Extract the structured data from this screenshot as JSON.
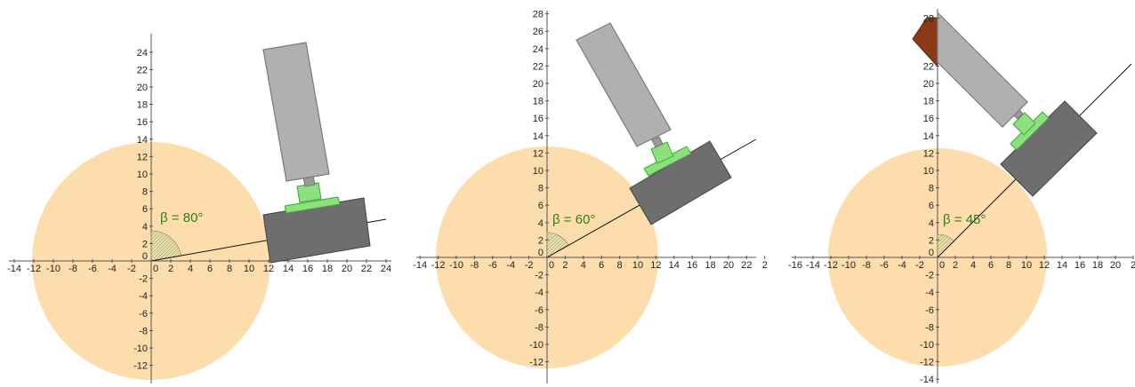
{
  "panels": [
    {
      "beta_label": "β = 80°",
      "x_ticks": [
        "-14",
        "-12",
        "-10",
        "-8",
        "-6",
        "-4",
        "-2",
        "0",
        "2",
        "4",
        "6",
        "8",
        "10",
        "12",
        "14",
        "16",
        "18",
        "20",
        "22",
        "24"
      ],
      "y_ticks": [
        "-12",
        "-10",
        "-8",
        "-6",
        "-4",
        "-2",
        "0",
        "2",
        "4",
        "6",
        "8",
        "10",
        "12",
        "14",
        "16",
        "18",
        "20",
        "22",
        "24"
      ]
    },
    {
      "beta_label": "β = 60°",
      "x_ticks": [
        "-14",
        "-12",
        "-10",
        "-8",
        "-6",
        "-4",
        "-2",
        "0",
        "2",
        "4",
        "6",
        "8",
        "10",
        "12",
        "14",
        "16",
        "18",
        "20",
        "22",
        "2"
      ],
      "y_ticks": [
        "-12",
        "-10",
        "-8",
        "-6",
        "-4",
        "-2",
        "0",
        "2",
        "4",
        "6",
        "8",
        "10",
        "12",
        "14",
        "16",
        "18",
        "20",
        "22",
        "24",
        "26",
        "28"
      ]
    },
    {
      "beta_label": "β = 45°",
      "x_ticks": [
        "-16",
        "-14",
        "-12",
        "-10",
        "-8",
        "-6",
        "-4",
        "-2",
        "0",
        "2",
        "4",
        "6",
        "8",
        "10",
        "12",
        "14",
        "16",
        "18",
        "20",
        "2"
      ],
      "y_ticks": [
        "-14",
        "-12",
        "-10",
        "-8",
        "-6",
        "-4",
        "-2",
        "0",
        "2",
        "4",
        "6",
        "8",
        "10",
        "12",
        "14",
        "16",
        "18",
        "20",
        "22",
        "28"
      ]
    }
  ],
  "colors": {
    "circle": "#fcd9a2",
    "dark_block": "#6e6e6e",
    "light_block": "#b0b0b0",
    "green": "#8ee07f",
    "brown": "#8b3a17",
    "label_green": "#2e7d1e"
  }
}
